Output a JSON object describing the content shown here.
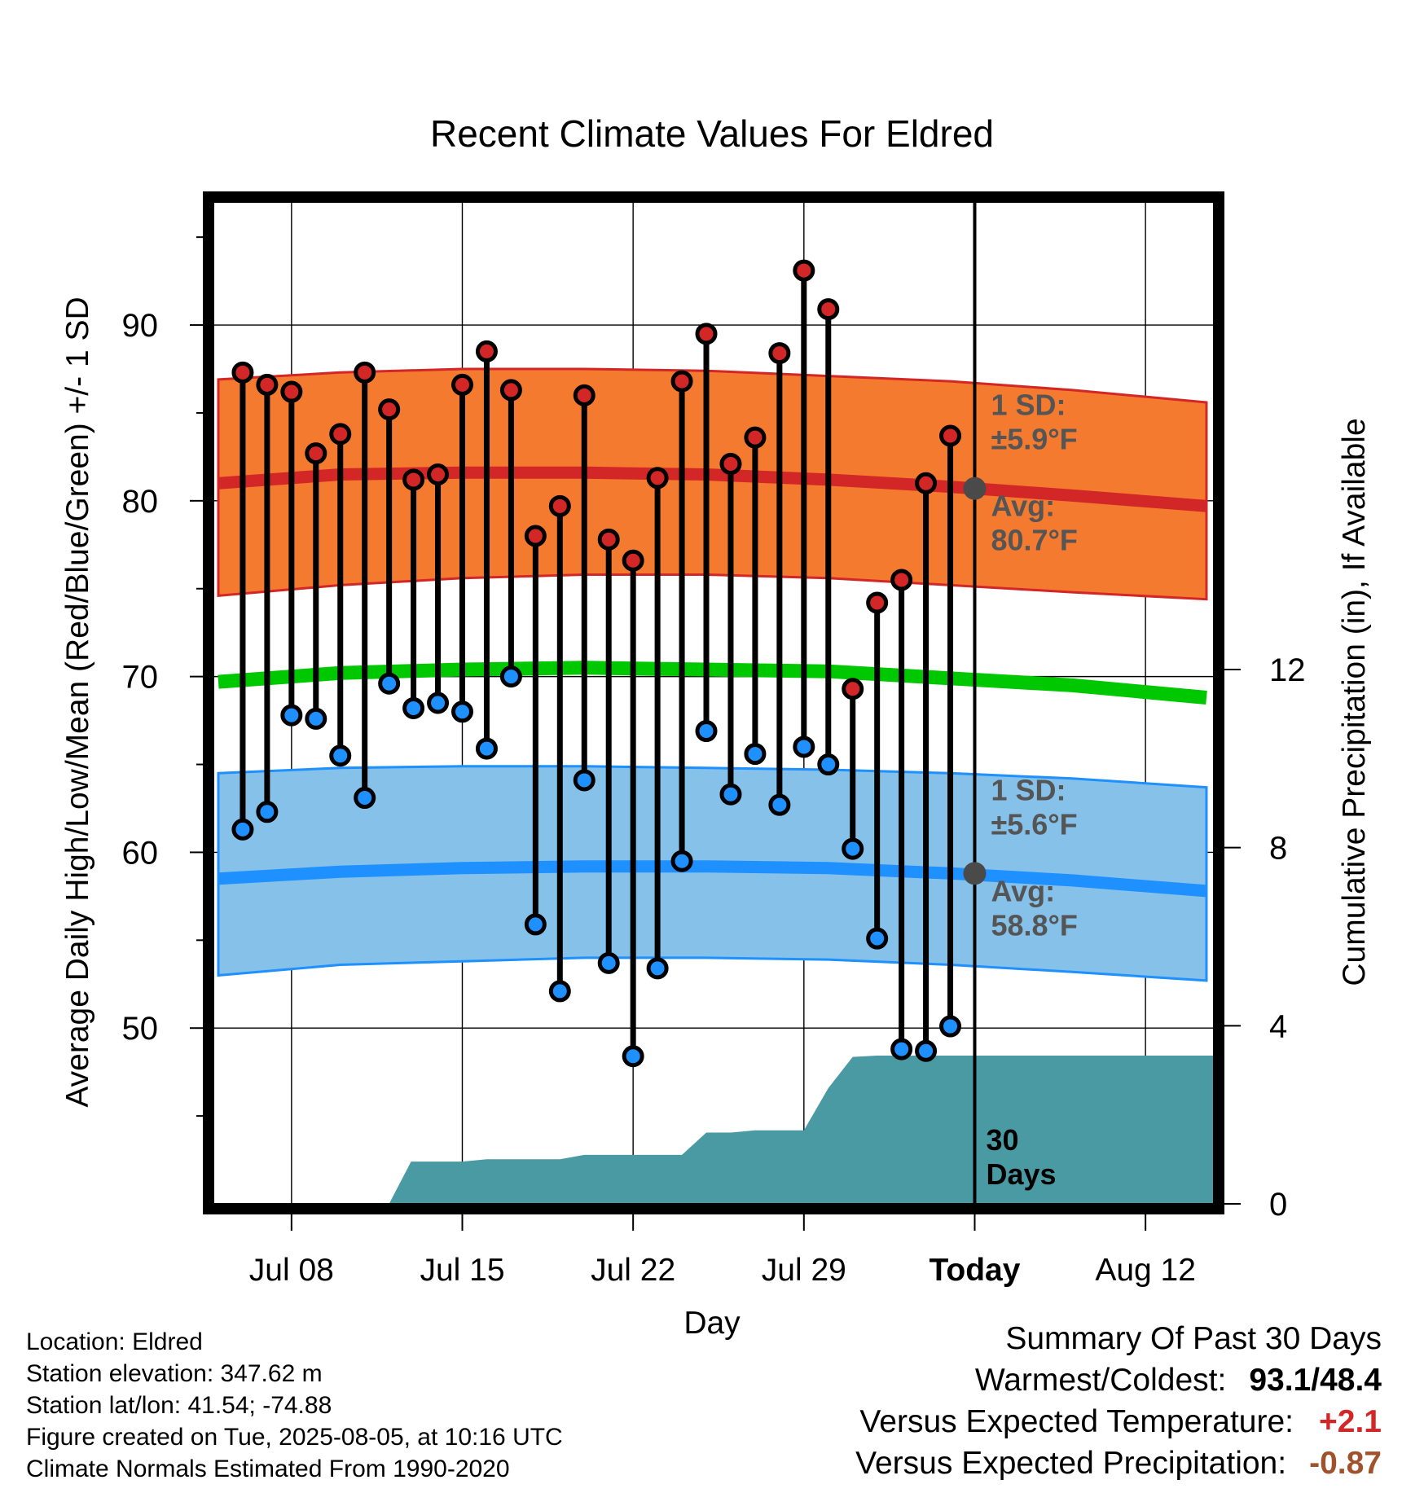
{
  "chart_data": {
    "type": "line",
    "title": "Recent Climate Values For Eldred",
    "xlabel": "Day",
    "ylabel": "Average Daily High/Low/Mean (Red/Blue/Green) +/- 1 SD",
    "y2label": "Cumulative Precipitation (in), If Available",
    "ylim": [
      40,
      97
    ],
    "y2lim": [
      0,
      22.5
    ],
    "yticks": [
      50,
      60,
      70,
      80,
      90
    ],
    "y2ticks": [
      0,
      4,
      8,
      12
    ],
    "xticks": [
      {
        "label": "Jul 08",
        "x": 8
      },
      {
        "label": "Jul 15",
        "x": 15
      },
      {
        "label": "Jul 22",
        "x": 22
      },
      {
        "label": "Jul 29",
        "x": 29
      },
      {
        "label": "Today",
        "x": 36
      },
      {
        "label": "Aug 12",
        "x": 43
      }
    ],
    "xlim": [
      4.8,
      45.8
    ],
    "today_x": 36,
    "colors": {
      "high_band": "#f47a2f",
      "high_line": "#d32626",
      "low_band": "#85c1e9",
      "low_line": "#1e90ff",
      "mean_line": "#00c800",
      "precip": "#4a9aa4",
      "high_marker": "#d32626",
      "low_marker": "#1e90ff",
      "avg_marker": "#4a4a4a",
      "annotation_text": "#555555"
    },
    "normals_x": [
      5,
      10,
      15,
      20,
      25,
      30,
      35,
      40,
      45.5
    ],
    "normal_high": [
      81.0,
      81.5,
      81.6,
      81.6,
      81.5,
      81.2,
      80.8,
      80.3,
      79.7
    ],
    "normal_high_upper": [
      86.9,
      87.3,
      87.5,
      87.5,
      87.4,
      87.1,
      86.8,
      86.3,
      85.6
    ],
    "normal_high_lower": [
      74.6,
      75.2,
      75.6,
      75.8,
      75.8,
      75.6,
      75.2,
      74.8,
      74.4
    ],
    "normal_mean": [
      69.7,
      70.2,
      70.4,
      70.5,
      70.4,
      70.3,
      69.9,
      69.5,
      68.8
    ],
    "normal_low": [
      58.5,
      58.9,
      59.1,
      59.2,
      59.2,
      59.1,
      58.8,
      58.4,
      57.8
    ],
    "normal_low_upper": [
      64.5,
      64.8,
      64.9,
      64.9,
      64.8,
      64.7,
      64.5,
      64.2,
      63.7
    ],
    "normal_low_lower": [
      53.0,
      53.6,
      53.8,
      54.0,
      54.0,
      53.9,
      53.6,
      53.2,
      52.7
    ],
    "daily_x": [
      6,
      7,
      8,
      9,
      10,
      11,
      12,
      13,
      14,
      15,
      16,
      17,
      18,
      19,
      20,
      21,
      22,
      23,
      24,
      25,
      26,
      27,
      28,
      29,
      30,
      31,
      32,
      33,
      34,
      35
    ],
    "daily_high": [
      87.3,
      86.6,
      86.2,
      82.7,
      83.8,
      87.3,
      85.2,
      81.2,
      81.5,
      86.6,
      88.5,
      86.3,
      78.0,
      79.7,
      86.0,
      77.8,
      76.6,
      81.3,
      86.8,
      89.5,
      82.1,
      83.6,
      88.4,
      93.1,
      90.9,
      69.3,
      74.2,
      75.5,
      81.0,
      83.7
    ],
    "daily_low": [
      61.3,
      62.3,
      67.8,
      67.6,
      65.5,
      63.1,
      69.6,
      68.2,
      68.5,
      68.0,
      65.9,
      70.0,
      55.9,
      52.1,
      64.1,
      53.7,
      48.4,
      53.4,
      59.5,
      66.9,
      63.3,
      65.6,
      62.7,
      66.0,
      65.0,
      60.2,
      55.1,
      48.8,
      48.7,
      50.1
    ],
    "precip_x": [
      12.0,
      12.9,
      14.0,
      15.0,
      16.0,
      17.0,
      18.0,
      19.0,
      20.0,
      21.0,
      22.0,
      23.0,
      24.0,
      25.0,
      26.0,
      27.0,
      28.0,
      29.0,
      30.0,
      31.0,
      32.0,
      33.0,
      34.0,
      35.0,
      36.0,
      45.8
    ],
    "precip": [
      0.0,
      0.95,
      0.95,
      0.95,
      1.0,
      1.0,
      1.0,
      1.0,
      1.1,
      1.1,
      1.1,
      1.1,
      1.1,
      1.6,
      1.6,
      1.65,
      1.65,
      1.65,
      2.6,
      3.3,
      3.33,
      3.33,
      3.33,
      3.33,
      3.33,
      3.33
    ],
    "annotations": {
      "high_sd_label": "1 SD:",
      "high_sd_value": "±5.9°F",
      "high_avg_label": "Avg:",
      "high_avg_value": "80.7°F",
      "high_avg": 80.7,
      "low_sd_label": "1 SD:",
      "low_sd_value": "±5.6°F",
      "low_avg_label": "Avg:",
      "low_avg_value": "58.8°F",
      "low_avg": 58.8,
      "period_number": "30",
      "period_unit": "Days"
    }
  },
  "info": {
    "location": "Location: Eldred",
    "elevation": "Station elevation: 347.62 m",
    "latlon": "Station lat/lon: 41.54; -74.88",
    "created": "Figure created on Tue, 2025-08-05, at 10:16 UTC",
    "normals": "Climate Normals Estimated From 1990-2020"
  },
  "summary": {
    "title": "Summary Of Past 30 Days",
    "warmest_coldest_label": "Warmest/Coldest:",
    "warmest_coldest_value": "93.1/48.4",
    "temp_label": "Versus Expected Temperature:",
    "temp_value": "+2.1",
    "temp_color": "#d32626",
    "precip_label": "Versus Expected Precipitation:",
    "precip_value": "-0.87",
    "precip_color": "#a0522d"
  }
}
